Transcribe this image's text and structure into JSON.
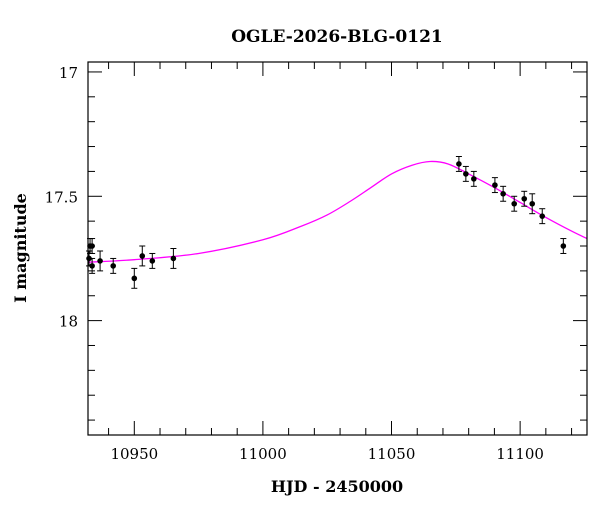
{
  "chart_data": {
    "type": "scatter",
    "title": "OGLE-2026-BLG-0121",
    "xlabel": "HJD - 2450000",
    "ylabel": "I magnitude",
    "xlim": [
      10932,
      11126
    ],
    "ylim": [
      18.46,
      16.96
    ],
    "y_inverted": true,
    "x_ticks": [
      10950,
      11000,
      11050,
      11100
    ],
    "y_ticks": [
      17,
      17.5,
      18
    ],
    "x_tick_labels": [
      "10950",
      "11000",
      "11050",
      "11100"
    ],
    "y_tick_labels": [
      "17",
      "17.5",
      "18"
    ],
    "grid": false,
    "colors": {
      "points": "#000000",
      "model": "#ff00ff"
    },
    "points": {
      "x": [
        10932.8,
        10933.6,
        10932.4,
        10933.6,
        10936.7,
        10941.8,
        10950.0,
        10953.1,
        10957.0,
        10965.2,
        11076.2,
        11078.9,
        11082.0,
        11090.2,
        11093.4,
        11097.7,
        11101.6,
        11104.7,
        11108.6,
        11116.8
      ],
      "y": [
        17.7,
        17.7,
        17.75,
        17.78,
        17.76,
        17.78,
        17.83,
        17.74,
        17.76,
        17.75,
        17.37,
        17.41,
        17.43,
        17.455,
        17.49,
        17.53,
        17.51,
        17.53,
        17.58,
        17.7
      ],
      "err": [
        0.03,
        0.03,
        0.03,
        0.03,
        0.04,
        0.03,
        0.04,
        0.04,
        0.03,
        0.04,
        0.03,
        0.03,
        0.03,
        0.03,
        0.03,
        0.03,
        0.03,
        0.04,
        0.03,
        0.03
      ]
    },
    "model": {
      "x": [
        10932,
        10950,
        10975,
        11000,
        11015,
        11025,
        11034,
        11042,
        11050,
        11058,
        11065,
        11072,
        11080,
        11090,
        11100,
        11110,
        11120,
        11126
      ],
      "y": [
        17.765,
        17.755,
        17.73,
        17.675,
        17.62,
        17.575,
        17.52,
        17.465,
        17.41,
        17.375,
        17.36,
        17.37,
        17.41,
        17.465,
        17.525,
        17.585,
        17.64,
        17.67
      ]
    }
  }
}
